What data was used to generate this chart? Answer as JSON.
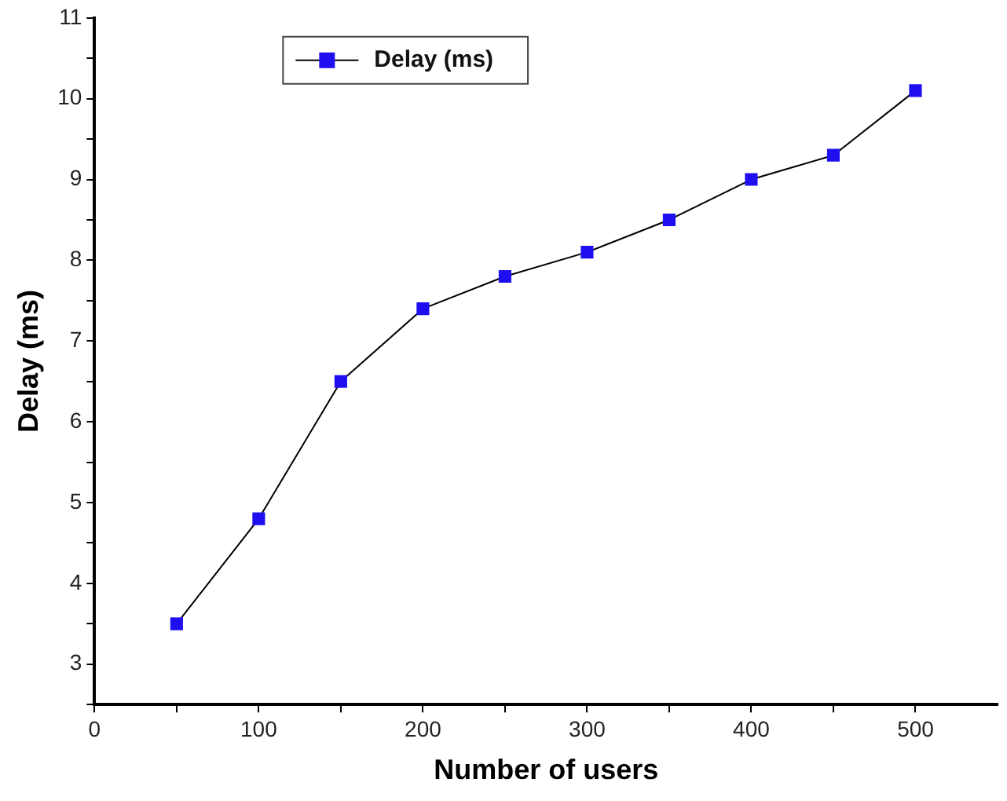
{
  "chart_data": {
    "type": "line",
    "xlabel": "Number of users",
    "ylabel": "Delay (ms)",
    "x": [
      50,
      100,
      150,
      200,
      250,
      300,
      350,
      400,
      450,
      500
    ],
    "series": [
      {
        "name": "Delay (ms)",
        "color": "#1f0ff0",
        "values": [
          3.5,
          4.8,
          6.5,
          7.4,
          7.8,
          8.1,
          8.5,
          9.0,
          9.3,
          10.1
        ]
      }
    ],
    "xlim": [
      0,
      550
    ],
    "xticks": [
      0,
      {
        "value": 50,
        "label": null
      },
      100,
      {
        "value": 150,
        "label": null
      },
      200,
      {
        "value": 250,
        "label": null
      },
      300,
      {
        "value": 350,
        "label": null
      },
      400,
      {
        "value": 450,
        "label": null
      },
      500
    ],
    "ylim": [
      2.5,
      11
    ],
    "yticks": [
      {
        "value": 2.5,
        "label": null
      },
      3,
      {
        "value": 3.5,
        "label": null
      },
      4,
      {
        "value": 4.5,
        "label": null
      },
      5,
      {
        "value": 5.5,
        "label": null
      },
      6,
      {
        "value": 6.5,
        "label": null
      },
      7,
      {
        "value": 7.5,
        "label": null
      },
      8,
      {
        "value": 8.5,
        "label": null
      },
      9,
      {
        "value": 9.5,
        "label": null
      },
      10,
      {
        "value": 10.5,
        "label": null
      },
      11
    ],
    "grid": false,
    "legend": "top left",
    "marker": "square",
    "line_style": "solid"
  }
}
